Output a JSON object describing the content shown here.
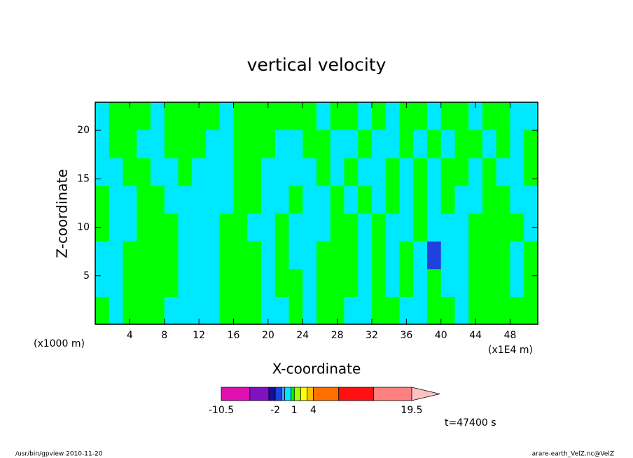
{
  "chart_data": {
    "type": "contour",
    "title": "vertical velocity",
    "xlabel": "X-coordinate",
    "ylabel": "Z-coordinate",
    "x_unit": "(x1000 m)",
    "x_scale_note": "(x1E4 m)",
    "time_label": "t=47400 s",
    "footer_left": "/usr/bin/gpview   2010-11-20",
    "footer_right": "arare-earth_VelZ.nc@VelZ",
    "xlim": [
      0,
      51.2
    ],
    "ylim": [
      0,
      22.9
    ],
    "xticks": [
      4,
      8,
      12,
      16,
      20,
      24,
      28,
      32,
      36,
      40,
      44,
      48
    ],
    "yticks": [
      5,
      10,
      15,
      20
    ],
    "x": [
      0.8,
      2.4,
      4.0,
      5.6,
      7.2,
      8.8,
      10.4,
      12.0,
      13.6,
      15.2,
      16.8,
      18.4,
      20.0,
      21.6,
      23.2,
      24.8,
      26.4,
      28.0,
      29.6,
      31.2,
      32.8,
      34.4,
      36.0,
      37.6,
      39.2,
      40.8,
      42.4,
      44.0,
      45.6,
      47.2,
      48.8,
      50.4
    ],
    "y": [
      1.43,
      4.29,
      7.15,
      10.0,
      12.9,
      15.7,
      18.6,
      21.5
    ],
    "z": [
      [
        0.75,
        0,
        0.75,
        0.75,
        0.75,
        0,
        0,
        0,
        0,
        0.75,
        0.75,
        0.75,
        0,
        0,
        0.75,
        0,
        0.75,
        0.75,
        0,
        0,
        0.75,
        0.75,
        0,
        0,
        0.75,
        0.75,
        0,
        0.75,
        0.75,
        0.75,
        0.75,
        0.75
      ],
      [
        0,
        0,
        0.75,
        0.75,
        0.75,
        0.75,
        0,
        0,
        0,
        0.75,
        0.75,
        0.75,
        0,
        0.75,
        0.75,
        0,
        0.75,
        0.75,
        0.75,
        0,
        0.75,
        0,
        0.75,
        0,
        0.75,
        0,
        0,
        0.75,
        0.75,
        0.75,
        0,
        0.75
      ],
      [
        0,
        0,
        0.75,
        0.75,
        0.75,
        0.75,
        0,
        0,
        0,
        0.75,
        0.75,
        0.75,
        0,
        0.75,
        0,
        0,
        0.75,
        0.75,
        0.75,
        0,
        0.75,
        0,
        0.75,
        0,
        -1.5,
        0,
        0,
        0.75,
        0.75,
        0.75,
        0,
        0.75
      ],
      [
        0.75,
        0,
        0,
        0.75,
        0.75,
        0.75,
        0,
        0,
        0,
        0.75,
        0.75,
        0,
        0,
        0.75,
        0,
        0,
        0,
        0.75,
        0.75,
        0,
        0.75,
        0,
        0,
        0.75,
        0,
        0,
        0,
        0.75,
        0.75,
        0.75,
        0.75,
        0
      ],
      [
        0.75,
        0,
        0,
        0.75,
        0.75,
        0,
        0,
        0,
        0,
        0,
        0.75,
        0.75,
        0,
        0,
        0.75,
        0,
        0,
        0.75,
        0,
        0.75,
        0,
        0.75,
        0,
        0.75,
        0,
        0.75,
        0,
        0,
        0.75,
        0.75,
        0,
        0
      ],
      [
        0,
        0,
        0.75,
        0.75,
        0,
        0,
        0.75,
        0,
        0,
        0,
        0.75,
        0.75,
        0,
        0,
        0,
        0,
        0.75,
        0,
        0.75,
        0,
        0,
        0.75,
        0,
        0.75,
        0,
        0.75,
        0.75,
        0,
        0.75,
        0,
        0,
        0.75
      ],
      [
        0,
        0.75,
        0.75,
        0,
        0,
        0.75,
        0.75,
        0.75,
        0,
        0,
        0.75,
        0.75,
        0.75,
        0,
        0,
        0.75,
        0.75,
        0,
        0,
        0.75,
        0,
        0,
        0.75,
        0,
        0.75,
        0,
        0.75,
        0.75,
        0,
        0.75,
        0,
        0.75
      ],
      [
        0,
        0.75,
        0.75,
        0.75,
        0,
        0.75,
        0.75,
        0.75,
        0.75,
        0,
        0.75,
        0.75,
        0.75,
        0.75,
        0.75,
        0.75,
        0,
        0.75,
        0.75,
        0,
        0.75,
        0,
        0.75,
        0.75,
        0,
        0.75,
        0.75,
        0,
        0.75,
        0.75,
        0,
        0
      ]
    ],
    "levels": [
      -10.5,
      -6,
      -3,
      -2,
      -1,
      -0.5,
      0.5,
      1,
      2,
      3,
      4,
      8,
      13.5,
      19.5
    ],
    "colors": [
      "#e010b0",
      "#8010c0",
      "#1010a0",
      "#2040e0",
      "#40a0ff",
      "#00e8ff",
      "#00ff00",
      "#a0ff00",
      "#ffff00",
      "#ffc000",
      "#ff7000",
      "#ff1010",
      "#ff8080"
    ],
    "extend_color": "#ffc0c0",
    "cbticks": [
      -10.5,
      -2,
      1,
      4,
      19.5
    ]
  }
}
